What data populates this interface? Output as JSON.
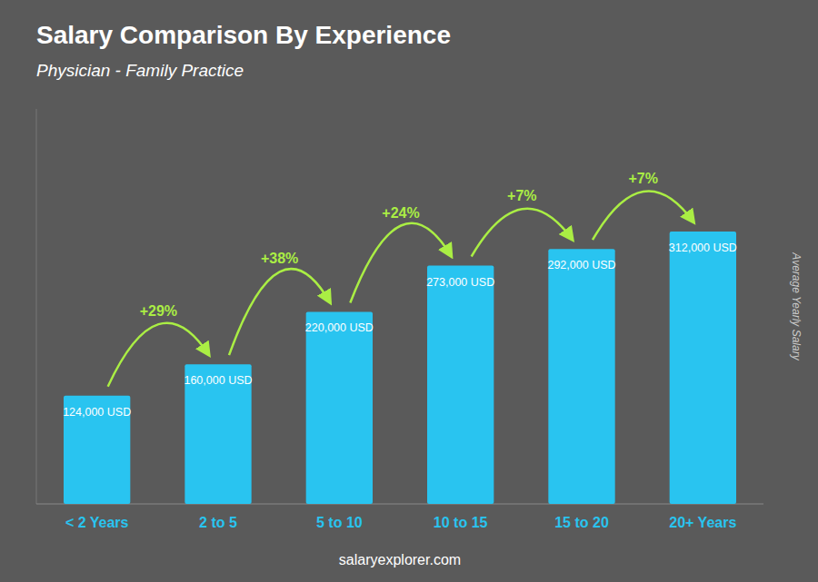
{
  "chart_data": {
    "type": "bar",
    "title": "Salary Comparison By Experience",
    "subtitle": "Physician - Family Practice",
    "categories": [
      "< 2 Years",
      "2 to 5",
      "5 to 10",
      "10 to 15",
      "15 to 20",
      "20+ Years"
    ],
    "values": [
      124000,
      160000,
      220000,
      273000,
      292000,
      312000
    ],
    "value_labels": [
      "124,000 USD",
      "160,000 USD",
      "220,000 USD",
      "273,000 USD",
      "292,000 USD",
      "312,000 USD"
    ],
    "data_labels": true,
    "annotations": [
      "+29%",
      "+38%",
      "+24%",
      "+7%",
      "+7%"
    ],
    "ylabel": "Average Yearly Salary",
    "watermark": "salaryexplorer.com",
    "color": "#29c4f0",
    "ylim": [
      0,
      452400
    ],
    "tick_labels": "x",
    "grid": false
  }
}
